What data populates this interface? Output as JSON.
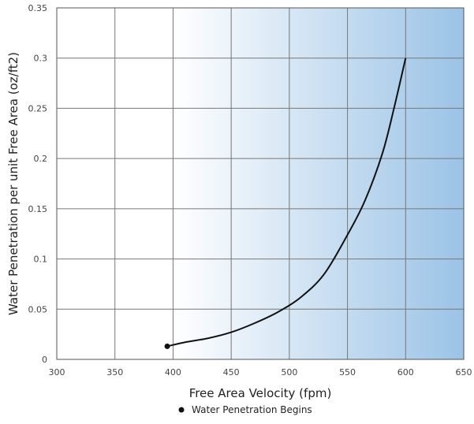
{
  "chart_data": {
    "type": "line",
    "title": "",
    "xlabel": "Free Area Velocity (fpm)",
    "ylabel": "Water Penetration per unit Free Area (oz/ft2)",
    "xlim": [
      300,
      650
    ],
    "ylim": [
      0,
      0.35
    ],
    "x_ticks": [
      "300",
      "350",
      "400",
      "450",
      "500",
      "550",
      "600",
      "650"
    ],
    "y_ticks": [
      "0",
      "0.05",
      "0.1",
      "0.15",
      "0.2",
      "0.25",
      "0.3",
      "0.35"
    ],
    "grid": true,
    "background_gradient": {
      "from_x": 400,
      "to_x": 650,
      "start_color": "#ffffff",
      "end_color": "#9bc3e6"
    },
    "series": [
      {
        "x": [
          395,
          410,
          430,
          450,
          470,
          490,
          510,
          530,
          550,
          565,
          580,
          590,
          600
        ],
        "y": [
          0.013,
          0.017,
          0.021,
          0.027,
          0.036,
          0.047,
          0.062,
          0.085,
          0.124,
          0.158,
          0.205,
          0.25,
          0.3
        ],
        "color": "#111111"
      }
    ],
    "marker_point": {
      "x": 395,
      "y": 0.013
    },
    "legend": {
      "position": "bottom-center",
      "marker": "dot",
      "label": "Water Penetration Begins"
    }
  }
}
